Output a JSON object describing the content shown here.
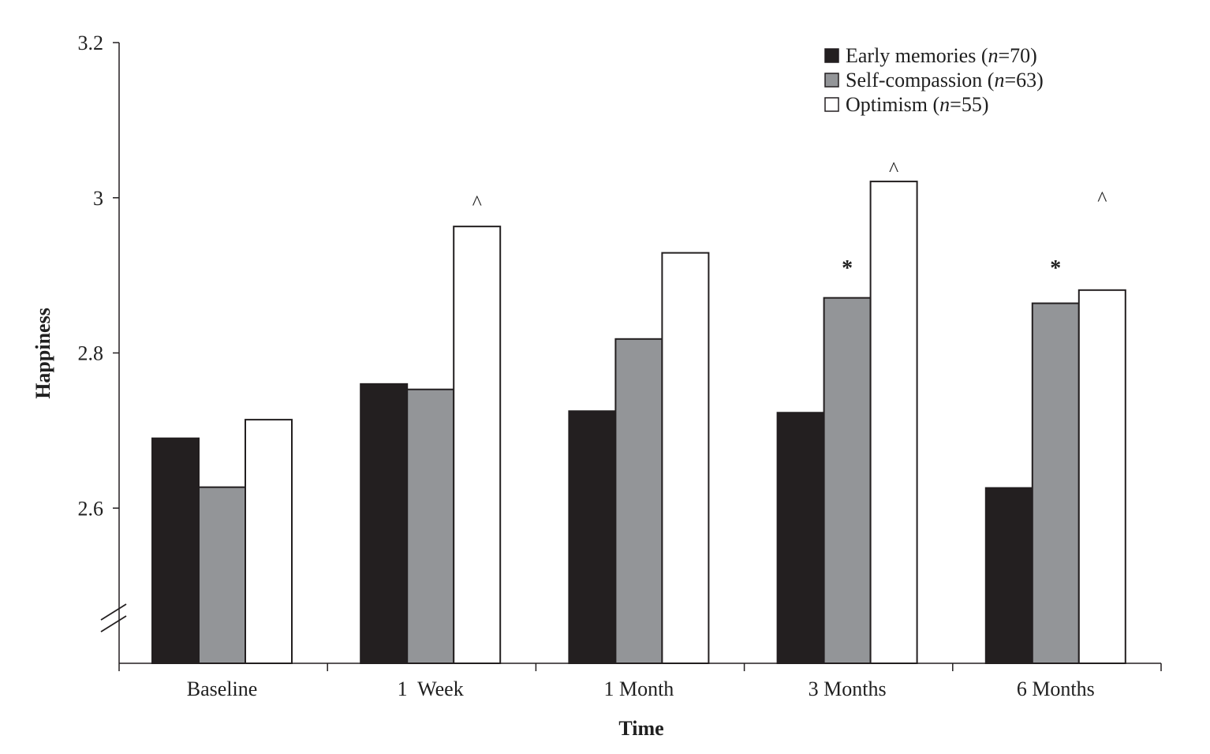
{
  "chart_data": {
    "type": "bar",
    "xlabel": "Time",
    "ylabel": "Happiness",
    "ylim": [
      2.4,
      3.2
    ],
    "yticks": [
      2.6,
      2.8,
      3,
      3.2
    ],
    "ytick_labels": [
      "2.6",
      "2.8",
      "3",
      "3.2"
    ],
    "axis_break": true,
    "categories": [
      "Baseline",
      "1  Week",
      "1 Month",
      "3 Months",
      "6 Months"
    ],
    "series": [
      {
        "label": "Early memories",
        "n_label": "(",
        "n_italic": "n",
        "n_rest": "=70)",
        "color": "#231f20",
        "values": [
          2.69,
          2.76,
          2.725,
          2.723,
          2.626
        ]
      },
      {
        "label": "Self-compassion",
        "n_label": "(",
        "n_italic": "n",
        "n_rest": "=63)",
        "color": "#939598",
        "values": [
          2.627,
          2.753,
          2.818,
          2.871,
          2.864
        ]
      },
      {
        "label": "Optimism",
        "n_label": "(",
        "n_italic": "n",
        "n_rest": "=55)",
        "color": "#ffffff",
        "values": [
          2.714,
          2.963,
          2.929,
          3.021,
          2.881
        ]
      }
    ],
    "annotations": [
      {
        "category": 1,
        "series": 2,
        "text": "^",
        "y": 2.985
      },
      {
        "category": 3,
        "series": 2,
        "text": "^",
        "y": 3.028
      },
      {
        "category": 3,
        "series": 1,
        "text": "*",
        "y": 2.9
      },
      {
        "category": 4,
        "series": 1,
        "text": "*",
        "y": 2.9
      },
      {
        "category": 4,
        "series": 2,
        "text": "^",
        "y": 2.99
      }
    ],
    "legend_position": "top-right",
    "grid": false
  }
}
